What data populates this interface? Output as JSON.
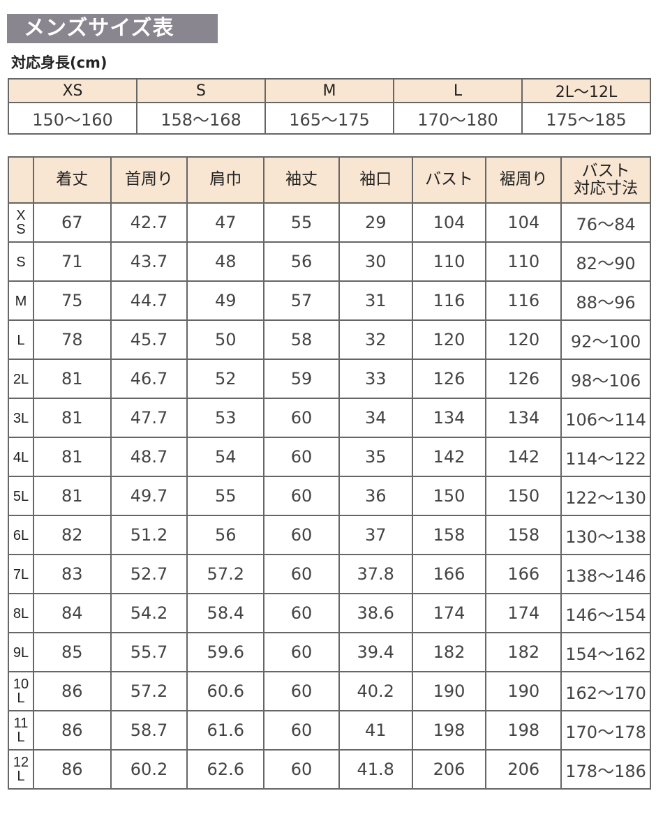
{
  "title": "メンズサイズ表",
  "height_label": "対応身長(cm)",
  "height_table": {
    "sizes": [
      "XS",
      "S",
      "M",
      "L",
      "2L〜12L"
    ],
    "ranges": [
      "150〜160",
      "158〜168",
      "165〜175",
      "170〜180",
      "175〜185"
    ]
  },
  "size_table": {
    "headers": [
      "",
      "着丈",
      "首周り",
      "肩巾",
      "袖丈",
      "袖口",
      "バスト",
      "裾周り",
      "バスト\n対応寸法"
    ],
    "rows": [
      [
        "XS",
        "67",
        "42.7",
        "47",
        "55",
        "29",
        "104",
        "104",
        "76〜84"
      ],
      [
        "S",
        "71",
        "43.7",
        "48",
        "56",
        "30",
        "110",
        "110",
        "82〜90"
      ],
      [
        "M",
        "75",
        "44.7",
        "49",
        "57",
        "31",
        "116",
        "116",
        "88〜96"
      ],
      [
        "L",
        "78",
        "45.7",
        "50",
        "58",
        "32",
        "120",
        "120",
        "92〜100"
      ],
      [
        "2L",
        "81",
        "46.7",
        "52",
        "59",
        "33",
        "126",
        "126",
        "98〜106"
      ],
      [
        "3L",
        "81",
        "47.7",
        "53",
        "60",
        "34",
        "134",
        "134",
        "106〜114"
      ],
      [
        "4L",
        "81",
        "48.7",
        "54",
        "60",
        "35",
        "142",
        "142",
        "114〜122"
      ],
      [
        "5L",
        "81",
        "49.7",
        "55",
        "60",
        "36",
        "150",
        "150",
        "122〜130"
      ],
      [
        "6L",
        "82",
        "51.2",
        "56",
        "60",
        "37",
        "158",
        "158",
        "130〜138"
      ],
      [
        "7L",
        "83",
        "52.7",
        "57.2",
        "60",
        "37.8",
        "166",
        "166",
        "138〜146"
      ],
      [
        "8L",
        "84",
        "54.2",
        "58.4",
        "60",
        "38.6",
        "174",
        "174",
        "146〜154"
      ],
      [
        "9L",
        "85",
        "55.7",
        "59.6",
        "60",
        "39.4",
        "182",
        "182",
        "154〜162"
      ],
      [
        "10L",
        "86",
        "57.2",
        "60.6",
        "60",
        "40.2",
        "190",
        "190",
        "162〜170"
      ],
      [
        "11L",
        "86",
        "58.7",
        "61.6",
        "60",
        "41",
        "198",
        "198",
        "170〜178"
      ],
      [
        "12L",
        "86",
        "60.2",
        "62.6",
        "60",
        "41.8",
        "206",
        "206",
        "178〜186"
      ]
    ]
  },
  "colors": {
    "title_bg": "#8a8690",
    "header_bg": "#f8e6d2",
    "border": "#666666"
  }
}
